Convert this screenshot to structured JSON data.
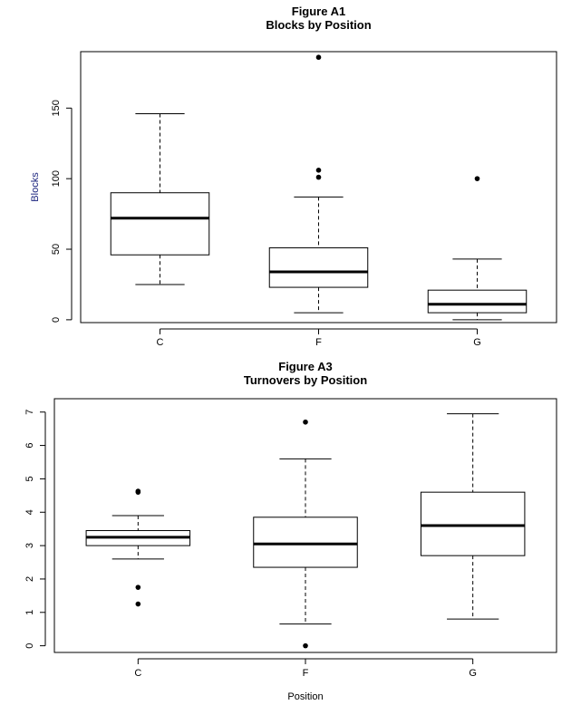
{
  "chart_data": [
    {
      "type": "boxplot",
      "title": "Figure A1",
      "subtitle": "Blocks by Position",
      "xlabel": "",
      "ylabel": "Blocks",
      "ylim": [
        -2,
        190
      ],
      "yticks": [
        0,
        50,
        100,
        150
      ],
      "categories": [
        "C",
        "F",
        "G"
      ],
      "boxes": [
        {
          "category": "C",
          "whisker_low": 25,
          "q1": 46,
          "median": 72,
          "q3": 90,
          "whisker_high": 146,
          "outliers": []
        },
        {
          "category": "F",
          "whisker_low": 5,
          "q1": 23,
          "median": 34,
          "q3": 51,
          "whisker_high": 87,
          "outliers": [
            101,
            106,
            186
          ]
        },
        {
          "category": "G",
          "whisker_low": 0,
          "q1": 5,
          "median": 11,
          "q3": 21,
          "whisker_high": 43,
          "outliers": [
            100
          ]
        }
      ]
    },
    {
      "type": "boxplot",
      "title": "Figure A3",
      "subtitle": "Turnovers by Position",
      "xlabel": "Position",
      "ylabel": "",
      "ylim": [
        -0.2,
        7.4
      ],
      "yticks": [
        0,
        1,
        2,
        3,
        4,
        5,
        6,
        7
      ],
      "categories": [
        "C",
        "F",
        "G"
      ],
      "boxes": [
        {
          "category": "C",
          "whisker_low": 2.6,
          "q1": 3.0,
          "median": 3.25,
          "q3": 3.45,
          "whisker_high": 3.9,
          "outliers": [
            1.25,
            1.75,
            4.6,
            4.63
          ]
        },
        {
          "category": "F",
          "whisker_low": 0.65,
          "q1": 2.35,
          "median": 3.05,
          "q3": 3.85,
          "whisker_high": 5.6,
          "outliers": [
            0.0,
            6.7
          ]
        },
        {
          "category": "G",
          "whisker_low": 0.8,
          "q1": 2.7,
          "median": 3.6,
          "q3": 4.6,
          "whisker_high": 6.95,
          "outliers": []
        }
      ]
    }
  ]
}
